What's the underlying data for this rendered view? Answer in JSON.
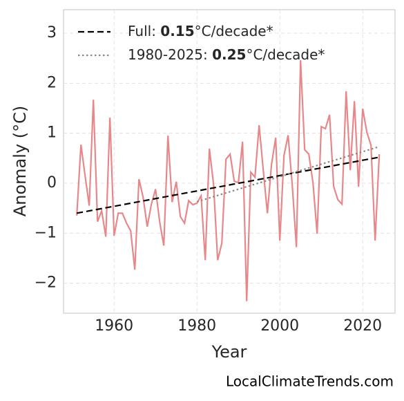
{
  "chart_data": {
    "type": "line",
    "x_label": "Year",
    "y_label": "Anomaly (°C)",
    "source": "LocalClimateTrends.com",
    "xlim": [
      1947.8,
      2027.8
    ],
    "ylim": [
      -2.6,
      3.47
    ],
    "xticks": [
      1960,
      1980,
      2000,
      2020
    ],
    "yticks": [
      {
        "value": -2,
        "label": "−2"
      },
      {
        "value": -1,
        "label": "−1"
      },
      0,
      1,
      2,
      3
    ],
    "grid": true,
    "legend": "upper left",
    "x": [
      1951,
      1952,
      1953,
      1954,
      1955,
      1956,
      1957,
      1958,
      1959,
      1960,
      1961,
      1962,
      1963,
      1964,
      1965,
      1966,
      1967,
      1968,
      1969,
      1970,
      1971,
      1972,
      1973,
      1974,
      1975,
      1976,
      1977,
      1978,
      1979,
      1980,
      1981,
      1982,
      1983,
      1984,
      1985,
      1986,
      1987,
      1988,
      1989,
      1990,
      1991,
      1992,
      1993,
      1994,
      1995,
      1996,
      1997,
      1998,
      1999,
      2000,
      2001,
      2002,
      2003,
      2004,
      2005,
      2006,
      2007,
      2008,
      2009,
      2010,
      2011,
      2012,
      2013,
      2014,
      2015,
      2016,
      2017,
      2018,
      2019,
      2020,
      2021,
      2022,
      2023,
      2024
    ],
    "series": [
      {
        "color": "#e8878a",
        "style": "solid",
        "values": [
          -0.65,
          0.77,
          0.15,
          -0.45,
          1.67,
          -0.77,
          -0.55,
          -1.07,
          1.31,
          -1.05,
          -0.6,
          -0.6,
          -0.8,
          -0.95,
          -1.73,
          0.08,
          -0.28,
          -0.87,
          -0.42,
          -0.12,
          -0.77,
          -1.25,
          0.95,
          -0.38,
          0.03,
          -0.67,
          -0.8,
          -0.35,
          -0.43,
          -0.4,
          -0.25,
          -1.54,
          0.69,
          -0.02,
          -1.54,
          -1.2,
          0.48,
          0.58,
          0.04,
          0.01,
          0.83,
          -2.36,
          0.22,
          0.12,
          1.16,
          0.26,
          -0.6,
          0.38,
          0.91,
          -1.15,
          0.55,
          0.96,
          -0.04,
          -1.28,
          2.46,
          0.67,
          0.58,
          0.01,
          -1.01,
          1.13,
          1.09,
          1.37,
          -0.07,
          -0.33,
          -0.42,
          1.84,
          0.26,
          1.64,
          -0.07,
          1.49,
          1.02,
          0.76,
          -1.15,
          0.58
        ]
      },
      {
        "name": [
          "Full: ",
          "0.15",
          "°C/decade*"
        ],
        "color": "#000000",
        "style": "dashed",
        "x": [
          1951,
          2024
        ],
        "values": [
          -0.6,
          0.52
        ]
      },
      {
        "name": [
          "1980-2025: ",
          "0.25",
          "°C/decade*"
        ],
        "color": "#888888",
        "style": "dotted",
        "x": [
          1980,
          2024
        ],
        "values": [
          -0.37,
          0.73
        ]
      }
    ]
  }
}
